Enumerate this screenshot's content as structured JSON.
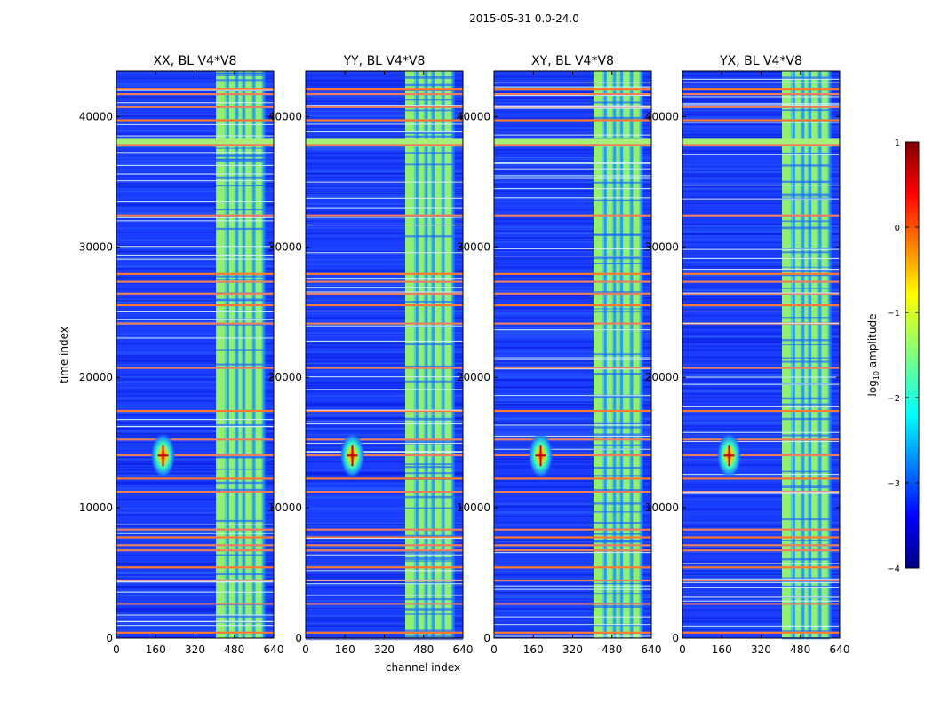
{
  "figure": {
    "suptitle": "2015-05-31 0.0-24.0"
  },
  "chart_data": {
    "type": "heatmap",
    "xlabel": "channel index",
    "ylabel": "time index",
    "xlim": [
      0,
      640
    ],
    "ylim": [
      0,
      43500
    ],
    "xticks": [
      0,
      160,
      320,
      480,
      640
    ],
    "yticks": [
      0,
      10000,
      20000,
      30000,
      40000
    ],
    "panels": [
      {
        "title": "XX, BL V4*V8"
      },
      {
        "title": "YY, BL V4*V8"
      },
      {
        "title": "XY, BL V4*V8"
      },
      {
        "title": "YX, BL V4*V8"
      }
    ],
    "colorbar": {
      "label": "log10 amplitude",
      "label_base": "log",
      "label_sub": "10",
      "label_rest": " amplitude",
      "range": [
        -4,
        1
      ],
      "ticks": [
        "1",
        "0",
        "−1",
        "−2",
        "−3",
        "−4"
      ],
      "colormap": "jet"
    },
    "features": {
      "rfi_band_channels": [
        [
          405,
          600
        ]
      ],
      "source_blob": {
        "channel": 190,
        "time": 14000
      },
      "flagged_time_rows": [
        500,
        2700,
        4500,
        5500,
        6800,
        7200,
        7800,
        8400,
        11300,
        12300,
        14100,
        15300,
        17500,
        20800,
        24200,
        25600,
        26500,
        27400,
        28000,
        32500,
        37900,
        39800,
        40800,
        41800,
        42200
      ]
    }
  }
}
